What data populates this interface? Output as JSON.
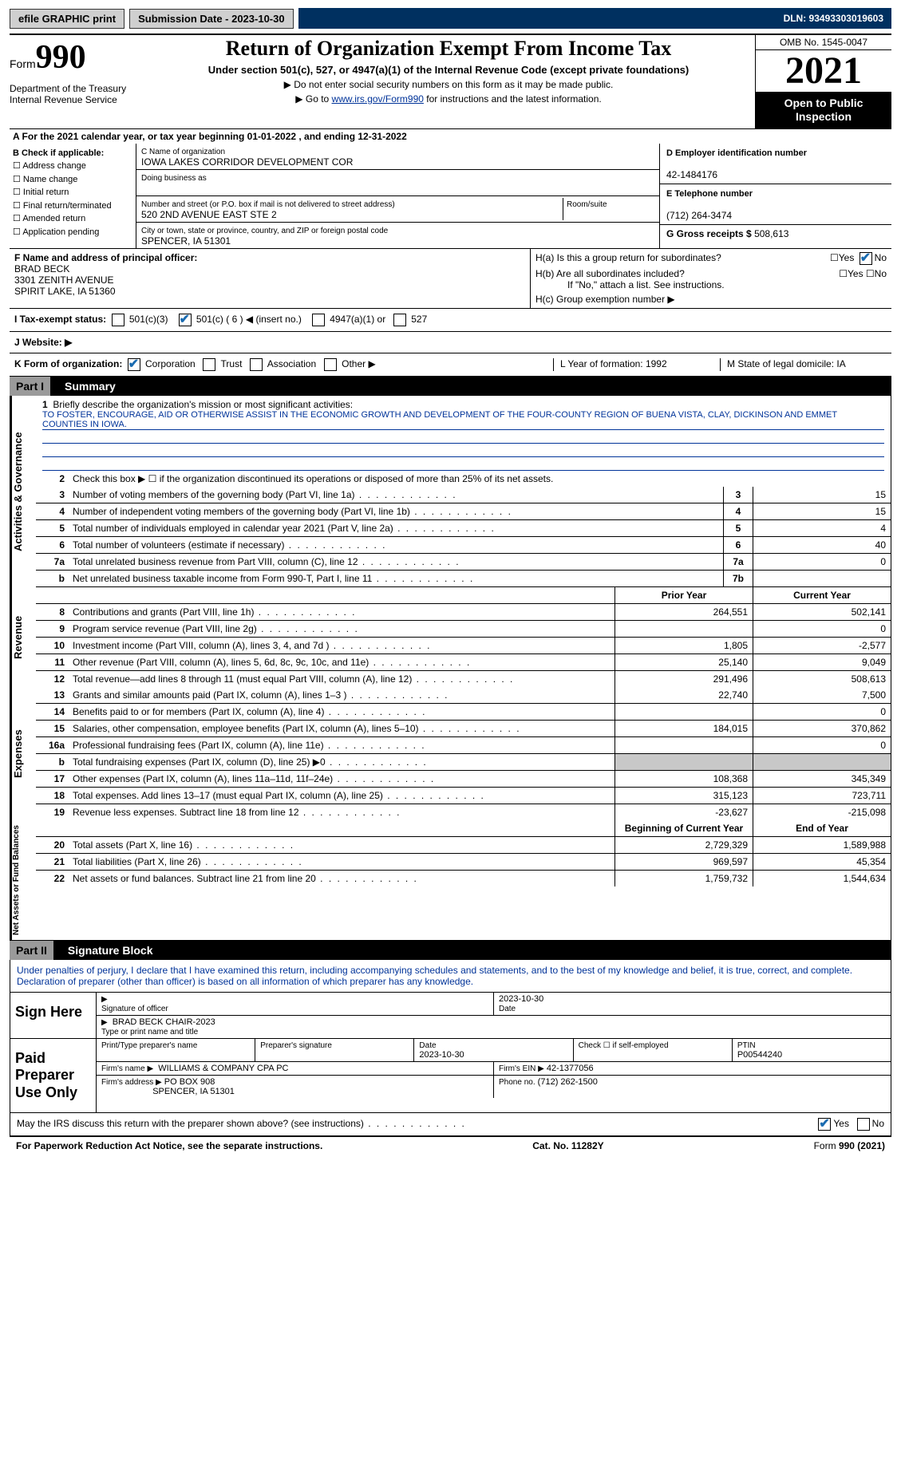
{
  "topbar": {
    "efile": "efile GRAPHIC print",
    "submission": "Submission Date - 2023-10-30",
    "dln": "DLN: 93493303019603"
  },
  "header": {
    "form_label": "Form",
    "form_number": "990",
    "dept": "Department of the Treasury\nInternal Revenue Service",
    "title": "Return of Organization Exempt From Income Tax",
    "sub": "Under section 501(c), 527, or 4947(a)(1) of the Internal Revenue Code (except private foundations)",
    "note1": "▶ Do not enter social security numbers on this form as it may be made public.",
    "note2_pre": "▶ Go to ",
    "note2_link": "www.irs.gov/Form990",
    "note2_post": " for instructions and the latest information.",
    "omb": "OMB No. 1545-0047",
    "year": "2021",
    "open": "Open to Public Inspection"
  },
  "lineA": "A For the 2021 calendar year, or tax year beginning 01-01-2022   , and ending 12-31-2022",
  "boxB": {
    "label": "B Check if applicable:",
    "opts": [
      "Address change",
      "Name change",
      "Initial return",
      "Final return/terminated",
      "Amended return",
      "Application pending"
    ]
  },
  "boxC": {
    "name_label": "C Name of organization",
    "name": "IOWA LAKES CORRIDOR DEVELOPMENT COR",
    "dba_label": "Doing business as",
    "addr_label": "Number and street (or P.O. box if mail is not delivered to street address)",
    "room_label": "Room/suite",
    "addr": "520 2ND AVENUE EAST STE 2",
    "city_label": "City or town, state or province, country, and ZIP or foreign postal code",
    "city": "SPENCER, IA  51301"
  },
  "boxD": {
    "label": "D Employer identification number",
    "val": "42-1484176"
  },
  "boxE": {
    "label": "E Telephone number",
    "val": "(712) 264-3474"
  },
  "boxG": {
    "label": "G Gross receipts $",
    "val": "508,613"
  },
  "boxF": {
    "label": "F  Name and address of principal officer:",
    "name": "BRAD BECK",
    "addr1": "3301 ZENITH AVENUE",
    "addr2": "SPIRIT LAKE, IA  51360"
  },
  "boxH": {
    "a": "H(a)  Is this a group return for subordinates?",
    "b": "H(b)  Are all subordinates included?",
    "b2": "If \"No,\" attach a list. See instructions.",
    "c": "H(c)  Group exemption number ▶"
  },
  "lineI": {
    "label": "I    Tax-exempt status:",
    "o1": "501(c)(3)",
    "o2": "501(c) ( 6 ) ◀ (insert no.)",
    "o3": "4947(a)(1) or",
    "o4": "527"
  },
  "lineJ": "J    Website: ▶",
  "lineK": {
    "label": "K Form of organization:",
    "opts": [
      "Corporation",
      "Trust",
      "Association",
      "Other ▶"
    ],
    "L": "L Year of formation: 1992",
    "M": "M State of legal domicile: IA"
  },
  "part1": {
    "label": "Part I",
    "title": "Summary"
  },
  "summary": {
    "l1": "Briefly describe the organization's mission or most significant activities:",
    "mission": "TO FOSTER, ENCOURAGE, AID OR OTHERWISE ASSIST IN THE ECONOMIC GROWTH AND DEVELOPMENT OF THE FOUR-COUNTY REGION OF BUENA VISTA, CLAY, DICKINSON AND EMMET COUNTIES IN IOWA.",
    "l2": "Check this box ▶ ☐  if the organization discontinued its operations or disposed of more than 25% of its net assets.",
    "rows": [
      {
        "n": "3",
        "t": "Number of voting members of the governing body (Part VI, line 1a)",
        "box": "3",
        "v": "15"
      },
      {
        "n": "4",
        "t": "Number of independent voting members of the governing body (Part VI, line 1b)",
        "box": "4",
        "v": "15"
      },
      {
        "n": "5",
        "t": "Total number of individuals employed in calendar year 2021 (Part V, line 2a)",
        "box": "5",
        "v": "4"
      },
      {
        "n": "6",
        "t": "Total number of volunteers (estimate if necessary)",
        "box": "6",
        "v": "40"
      },
      {
        "n": "7a",
        "t": "Total unrelated business revenue from Part VIII, column (C), line 12",
        "box": "7a",
        "v": "0"
      },
      {
        "n": "b",
        "t": "Net unrelated business taxable income from Form 990-T, Part I, line 11",
        "box": "7b",
        "v": ""
      }
    ],
    "header_prior": "Prior Year",
    "header_current": "Current Year",
    "rev": [
      {
        "n": "8",
        "t": "Contributions and grants (Part VIII, line 1h)",
        "p": "264,551",
        "c": "502,141"
      },
      {
        "n": "9",
        "t": "Program service revenue (Part VIII, line 2g)",
        "p": "",
        "c": "0"
      },
      {
        "n": "10",
        "t": "Investment income (Part VIII, column (A), lines 3, 4, and 7d )",
        "p": "1,805",
        "c": "-2,577"
      },
      {
        "n": "11",
        "t": "Other revenue (Part VIII, column (A), lines 5, 6d, 8c, 9c, 10c, and 11e)",
        "p": "25,140",
        "c": "9,049"
      },
      {
        "n": "12",
        "t": "Total revenue—add lines 8 through 11 (must equal Part VIII, column (A), line 12)",
        "p": "291,496",
        "c": "508,613"
      }
    ],
    "exp": [
      {
        "n": "13",
        "t": "Grants and similar amounts paid (Part IX, column (A), lines 1–3 )",
        "p": "22,740",
        "c": "7,500"
      },
      {
        "n": "14",
        "t": "Benefits paid to or for members (Part IX, column (A), line 4)",
        "p": "",
        "c": "0"
      },
      {
        "n": "15",
        "t": "Salaries, other compensation, employee benefits (Part IX, column (A), lines 5–10)",
        "p": "184,015",
        "c": "370,862"
      },
      {
        "n": "16a",
        "t": "Professional fundraising fees (Part IX, column (A), line 11e)",
        "p": "",
        "c": "0"
      },
      {
        "n": "b",
        "t": "Total fundraising expenses (Part IX, column (D), line 25) ▶0",
        "p": "grey",
        "c": "grey"
      },
      {
        "n": "17",
        "t": "Other expenses (Part IX, column (A), lines 11a–11d, 11f–24e)",
        "p": "108,368",
        "c": "345,349"
      },
      {
        "n": "18",
        "t": "Total expenses. Add lines 13–17 (must equal Part IX, column (A), line 25)",
        "p": "315,123",
        "c": "723,711"
      },
      {
        "n": "19",
        "t": "Revenue less expenses. Subtract line 18 from line 12",
        "p": "-23,627",
        "c": "-215,098"
      }
    ],
    "header_begin": "Beginning of Current Year",
    "header_end": "End of Year",
    "net": [
      {
        "n": "20",
        "t": "Total assets (Part X, line 16)",
        "p": "2,729,329",
        "c": "1,589,988"
      },
      {
        "n": "21",
        "t": "Total liabilities (Part X, line 26)",
        "p": "969,597",
        "c": "45,354"
      },
      {
        "n": "22",
        "t": "Net assets or fund balances. Subtract line 21 from line 20",
        "p": "1,759,732",
        "c": "1,544,634"
      }
    ]
  },
  "sides": {
    "gov": "Activities & Governance",
    "rev": "Revenue",
    "exp": "Expenses",
    "net": "Net Assets or Fund Balances"
  },
  "part2": {
    "label": "Part II",
    "title": "Signature Block"
  },
  "sig": {
    "decl": "Under penalties of perjury, I declare that I have examined this return, including accompanying schedules and statements, and to the best of my knowledge and belief, it is true, correct, and complete. Declaration of preparer (other than officer) is based on all information of which preparer has any knowledge.",
    "sign_here": "Sign Here",
    "sig_officer": "Signature of officer",
    "date_val": "2023-10-30",
    "date_lab": "Date",
    "typed_name": "BRAD BECK CHAIR-2023",
    "typed_lab": "Type or print name and title",
    "paid": "Paid Preparer Use Only",
    "pp_name_lab": "Print/Type preparer's name",
    "pp_sig_lab": "Preparer's signature",
    "pp_date_lab": "Date",
    "pp_date": "2023-10-30",
    "pp_check": "Check ☐ if self-employed",
    "ptin_lab": "PTIN",
    "ptin": "P00544240",
    "firm_name_lab": "Firm's name    ▶",
    "firm_name": "WILLIAMS & COMPANY CPA PC",
    "firm_ein_lab": "Firm's EIN ▶",
    "firm_ein": "42-1377056",
    "firm_addr_lab": "Firm's address ▶",
    "firm_addr1": "PO BOX 908",
    "firm_addr2": "SPENCER, IA  51301",
    "phone_lab": "Phone no.",
    "phone": "(712) 262-1500",
    "discuss": "May the IRS discuss this return with the preparer shown above? (see instructions)"
  },
  "footer": {
    "left": "For Paperwork Reduction Act Notice, see the separate instructions.",
    "mid": "Cat. No. 11282Y",
    "right": "Form 990 (2021)"
  }
}
